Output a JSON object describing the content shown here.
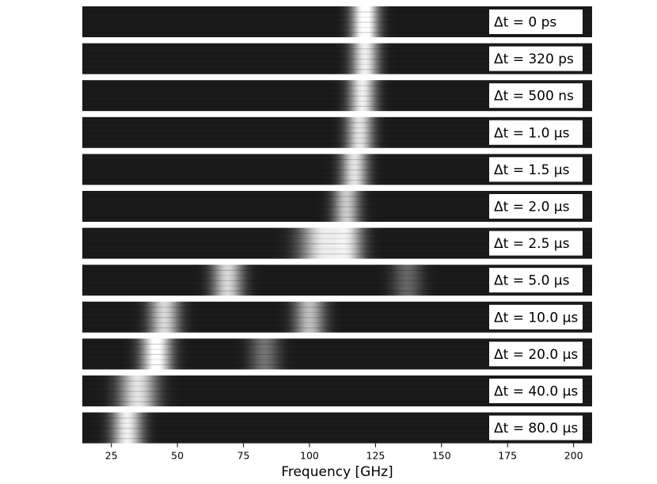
{
  "chart_data": {
    "type": "heatmap",
    "xlabel": "Frequency [GHz]",
    "xlim": [
      14,
      207
    ],
    "xticks": [
      25,
      50,
      75,
      100,
      125,
      150,
      175,
      200
    ],
    "xtick_labels": [
      "25",
      "50",
      "75",
      "100",
      "125",
      "150",
      "175",
      "200"
    ],
    "colormap": "grayscale",
    "panels": [
      {
        "label": "Δt = 0 ps",
        "peaks": [
          {
            "center": 121,
            "width": 3.5,
            "amp": 1.0
          }
        ]
      },
      {
        "label": "Δt = 320 ps",
        "peaks": [
          {
            "center": 121,
            "width": 3.5,
            "amp": 0.85
          }
        ]
      },
      {
        "label": "Δt = 500 ns",
        "peaks": [
          {
            "center": 120,
            "width": 3.5,
            "amp": 0.85
          }
        ]
      },
      {
        "label": "Δt = 1.0 μs",
        "peaks": [
          {
            "center": 119,
            "width": 3.5,
            "amp": 0.8
          }
        ]
      },
      {
        "label": "Δt = 1.5 μs",
        "peaks": [
          {
            "center": 117,
            "width": 3.5,
            "amp": 0.8
          }
        ]
      },
      {
        "label": "Δt = 2.0 μs",
        "peaks": [
          {
            "center": 114,
            "width": 3.5,
            "amp": 0.7
          }
        ]
      },
      {
        "label": "Δt = 2.5 μs",
        "peaks": [
          {
            "center": 105,
            "width": 6,
            "amp": 0.8
          },
          {
            "center": 115,
            "width": 4,
            "amp": 0.6
          }
        ]
      },
      {
        "label": "Δt = 5.0 μs",
        "peaks": [
          {
            "center": 69,
            "width": 4,
            "amp": 0.75
          },
          {
            "center": 137,
            "width": 4,
            "amp": 0.3
          }
        ]
      },
      {
        "label": "Δt = 10.0 μs",
        "peaks": [
          {
            "center": 45,
            "width": 4,
            "amp": 0.75
          },
          {
            "center": 100,
            "width": 4,
            "amp": 0.65
          }
        ]
      },
      {
        "label": "Δt = 20.0 μs",
        "peaks": [
          {
            "center": 42,
            "width": 4,
            "amp": 0.95
          },
          {
            "center": 83,
            "width": 4,
            "amp": 0.35
          }
        ]
      },
      {
        "label": "Δt = 40.0 μs",
        "peaks": [
          {
            "center": 35,
            "width": 5,
            "amp": 0.8
          }
        ]
      },
      {
        "label": "Δt = 80.0 μs",
        "peaks": [
          {
            "center": 31,
            "width": 4,
            "amp": 0.85
          }
        ]
      }
    ]
  }
}
